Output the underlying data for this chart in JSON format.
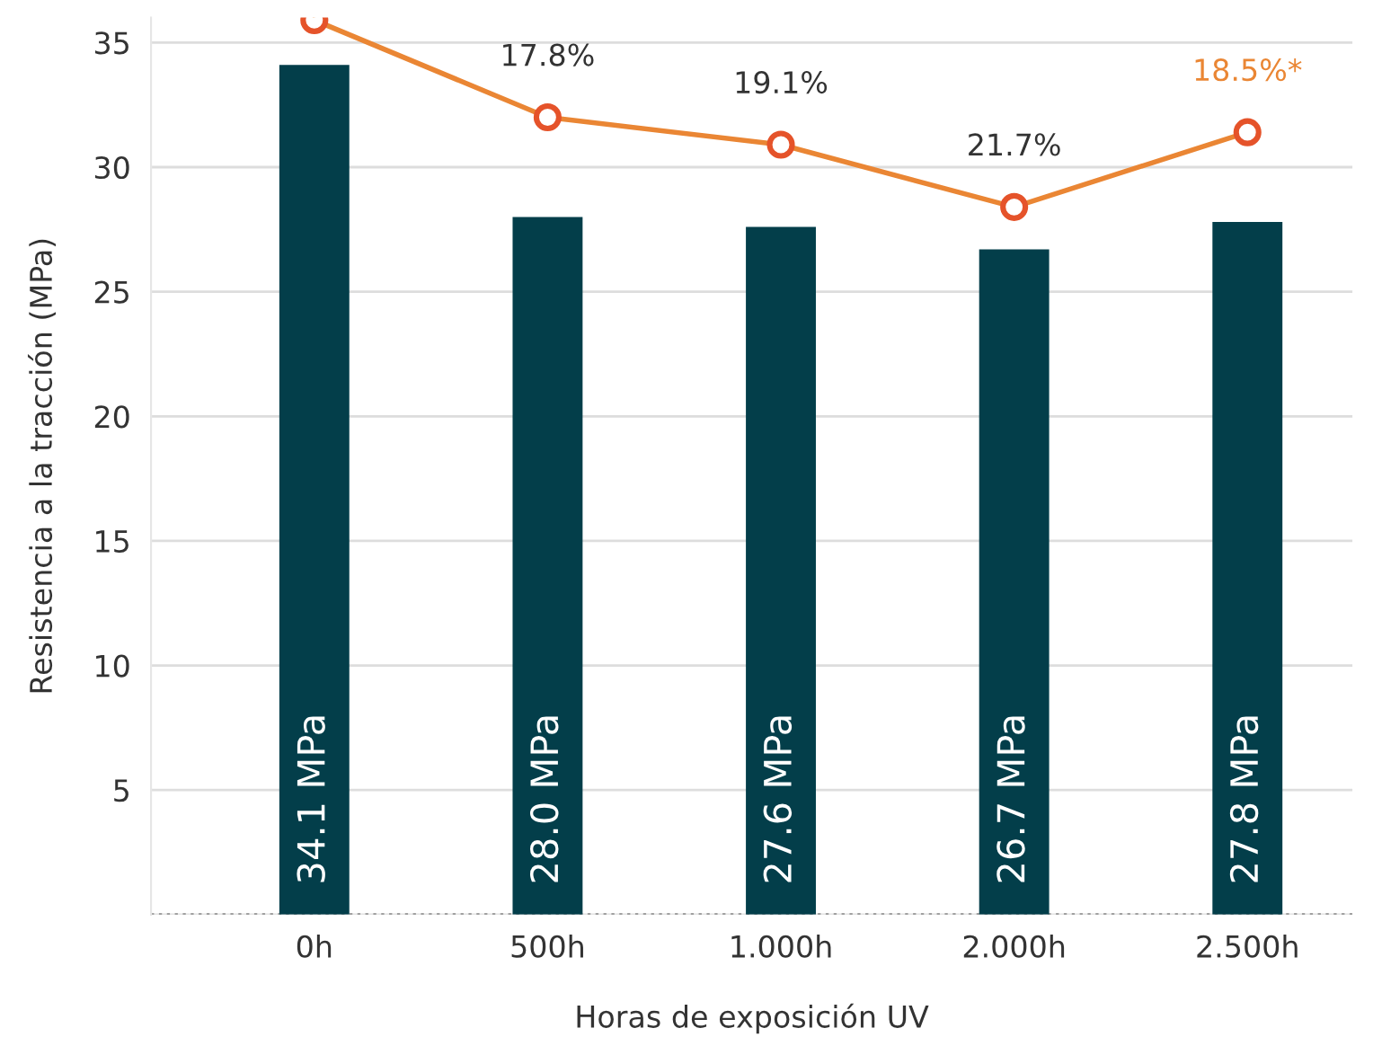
{
  "chart_data": {
    "type": "bar",
    "xlabel": "Horas de exposición UV",
    "ylabel": "Resistencia a la tracción (MPa)",
    "categories": [
      "0h",
      "500h",
      "1.000h",
      "2.000h",
      "2.500h"
    ],
    "series": [
      {
        "color": "#033e4a",
        "values": [
          34.1,
          28.0,
          27.6,
          26.7,
          27.8
        ],
        "value_labels": [
          "34.1 MPa",
          "28.0 MPa",
          "27.6 MPa",
          "26.7 MPa",
          "27.8 MPa"
        ]
      },
      {
        "type": "line",
        "color": "#ea8634",
        "marker": "circle",
        "values": [
          35.9,
          32.0,
          30.9,
          28.4,
          31.4
        ]
      }
    ],
    "annotations": [
      "17.8%",
      "19.1%",
      "21.7%",
      "18.5%*"
    ],
    "ylim": [
      0,
      36
    ],
    "yticks": [
      {
        "value": 0,
        "label": null
      },
      5,
      10,
      15,
      20,
      25,
      30,
      35
    ],
    "grid": "y",
    "legend": false
  }
}
